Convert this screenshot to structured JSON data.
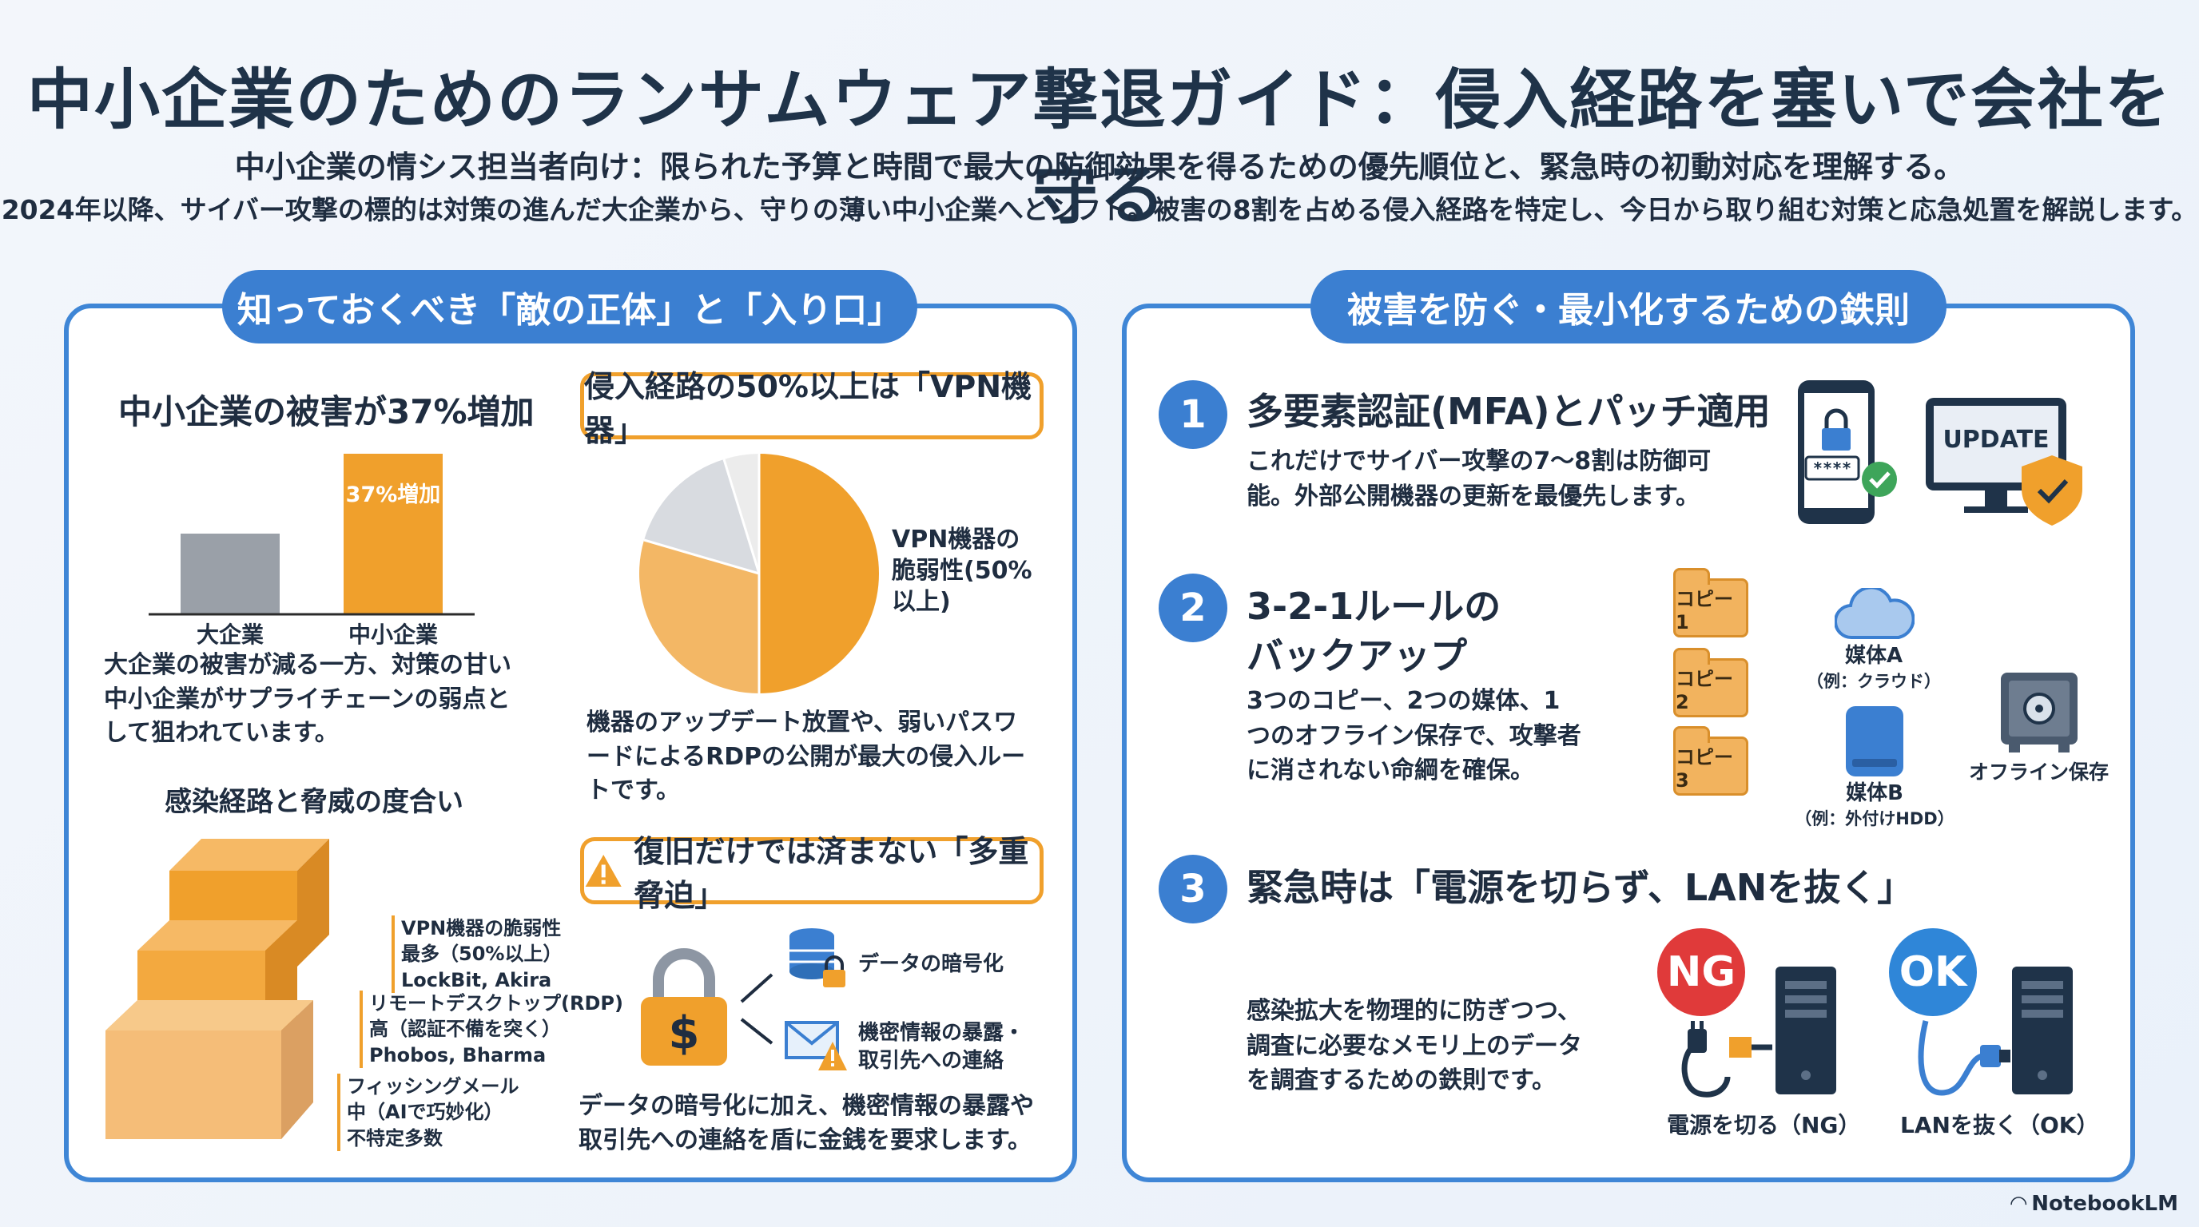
{
  "header": {
    "title": "中小企業のためのランサムウェア撃退ガイド：侵入経路を塞いで会社を守る",
    "subtitle": "中小企業の情シス担当者向け：限られた予算と時間で最大の防御効果を得るための優先順位と、緊急時の初動対応を理解する。",
    "subtitle2": "2024年以降、サイバー攻撃の標的は対策の進んだ大企業から、守りの薄い中小企業へとシフト。被害の8割を占める侵入経路を特定し、今日から取り組む対策と応急処置を解説します。"
  },
  "left_panel": {
    "heading": "知っておくべき「敵の正体」と「入り口」",
    "damage": {
      "title": "中小企業の被害が37%増加",
      "bar_label": "37%増加",
      "desc": "大企業の被害が減る一方、対策の甘い中小企業がサプライチェーンの弱点として狙われています。"
    },
    "vpn": {
      "title": "侵入経路の50%以上は「VPN機器」",
      "pie_label": "VPN機器の脆弱性(50%以上)",
      "desc": "機器のアップデート放置や、弱いパスワードによるRDPの公開が最大の侵入ルートです。"
    },
    "infection": {
      "title": "感染経路と脅威の度合い",
      "steps": [
        {
          "name": "VPN機器の脆弱性",
          "level": "最多（50%以上）",
          "examples": "LockBit, Akira"
        },
        {
          "name": "リモートデスクトップ(RDP)",
          "level": "高（認証不備を突く）",
          "examples": "Phobos, Bharma"
        },
        {
          "name": "フィッシングメール",
          "level": "中（AIで巧妙化）",
          "examples": "不特定多数"
        }
      ]
    },
    "threat": {
      "title": "復旧だけでは済まない「多重脅迫」",
      "item1": "データの暗号化",
      "item2a": "機密情報の暴露・",
      "item2b": "取引先への連絡",
      "desc": "データの暗号化に加え、機密情報の暴露や取引先への連絡を盾に金銭を要求します。"
    }
  },
  "chart_data": {
    "type": "bar",
    "categories": [
      "大企業",
      "中小企業"
    ],
    "annotations": [
      "37%増加"
    ]
  },
  "right_panel": {
    "heading": "被害を防ぐ・最小化するための鉄則",
    "rules": [
      {
        "num": "1",
        "title": "多要素認証(MFA)とパッチ適用",
        "desc": "これだけでサイバー攻撃の7〜8割は防御可能。外部公開機器の更新を最優先します。"
      },
      {
        "num": "2",
        "title_line1": "3-2-1ルールの",
        "title_line2": "バックアップ",
        "desc": "3つのコピー、2つの媒体、1つのオフライン保存で、攻撃者に消されない命綱を確保。"
      },
      {
        "num": "3",
        "title": "緊急時は「電源を切らず、LANを抜く」",
        "desc": "感染拡大を物理的に防ぎつつ、調査に必要なメモリ上のデータを調査するための鉄則です。"
      }
    ],
    "password_mask": "****",
    "update_label": "UPDATE",
    "copies": [
      "コピー1",
      "コピー2",
      "コピー3"
    ],
    "media_a": "媒体A",
    "media_a_ex": "（例：クラウド）",
    "media_b": "媒体B",
    "media_b_ex": "（例：外付けHDD）",
    "offline": "オフライン保存",
    "ng": "NG",
    "ok": "OK",
    "ng_caption": "電源を切る（NG）",
    "ok_caption": "LANを抜く（OK）"
  },
  "brand": "NotebookLM",
  "colors": {
    "accent_blue": "#3b7fd1",
    "accent_orange": "#f0a02c",
    "gray_bar": "#9aa0a8",
    "ng_red": "#e03a3a",
    "ok_blue": "#2f86d8"
  }
}
